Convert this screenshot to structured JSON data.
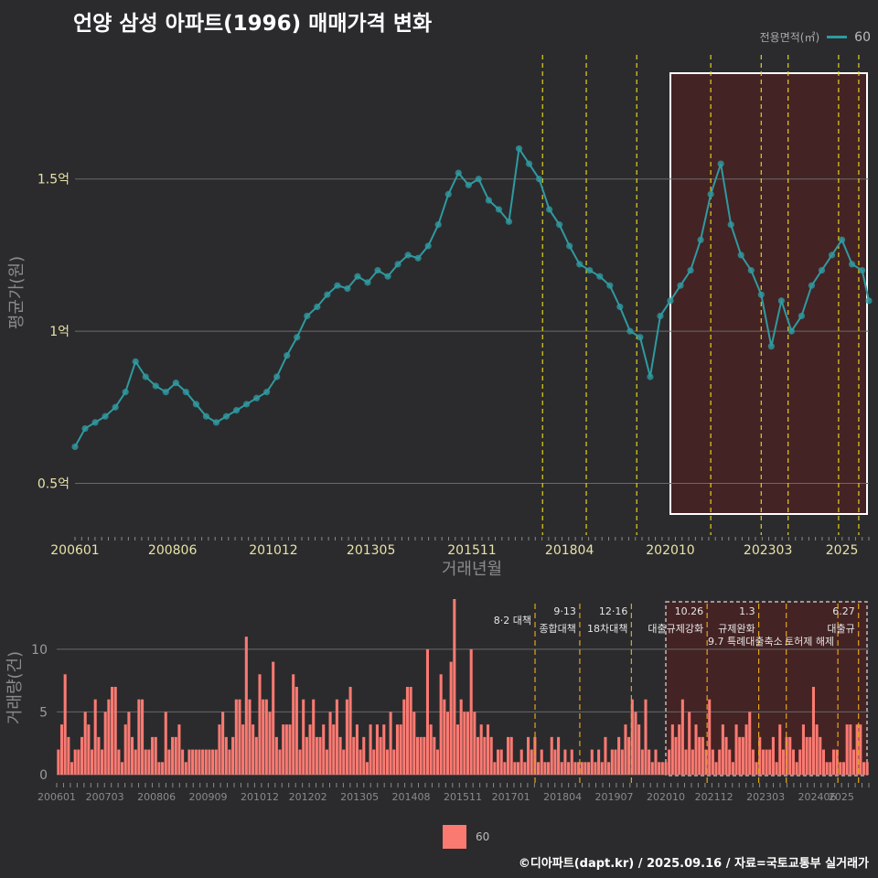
{
  "title": "언양 삼성 아파트(1996) 매매가격 변화",
  "legend": {
    "title": "전용면적(㎡)",
    "entry": "60",
    "line_color": "#2f9aa0",
    "bar_color": "#fa7a72"
  },
  "footer": "©디아파트(dapt.kr) / 2025.09.16 / 자료=국토교통부 실거래가",
  "chart_data": [
    {
      "type": "line",
      "title": "언양 삼성 아파트(1996) 매매가격 변화",
      "xlabel": "거래년월",
      "ylabel": "평균가(원)",
      "ylim": [
        0.33,
        1.92
      ],
      "yticks": [
        {
          "v": 0.5,
          "label": "0.5억"
        },
        {
          "v": 1.0,
          "label": "1억"
        },
        {
          "v": 1.5,
          "label": "1.5억"
        }
      ],
      "xticks": [
        "200601",
        "200806",
        "201012",
        "201305",
        "201511",
        "201804",
        "202010",
        "202303",
        "2025"
      ],
      "x_range": [
        "2006-01",
        "2025-09"
      ],
      "series": [
        {
          "name": "60",
          "x": [
            "2006-01",
            "2006-04",
            "2006-07",
            "2006-10",
            "2007-01",
            "2007-04",
            "2007-07",
            "2007-10",
            "2008-01",
            "2008-04",
            "2008-07",
            "2008-10",
            "2009-01",
            "2009-04",
            "2009-07",
            "2009-10",
            "2010-01",
            "2010-04",
            "2010-07",
            "2010-10",
            "2011-01",
            "2011-04",
            "2011-07",
            "2011-10",
            "2012-01",
            "2012-04",
            "2012-07",
            "2012-10",
            "2013-01",
            "2013-04",
            "2013-07",
            "2013-10",
            "2014-01",
            "2014-04",
            "2014-07",
            "2014-10",
            "2015-01",
            "2015-04",
            "2015-07",
            "2015-10",
            "2016-01",
            "2016-04",
            "2016-07",
            "2016-10",
            "2017-01",
            "2017-04",
            "2017-07",
            "2017-10",
            "2018-01",
            "2018-04",
            "2018-07",
            "2018-10",
            "2019-01",
            "2019-04",
            "2019-07",
            "2019-10",
            "2020-01",
            "2020-04",
            "2020-07",
            "2020-10",
            "2021-01",
            "2021-04",
            "2021-07",
            "2021-10",
            "2022-01",
            "2022-04",
            "2022-07",
            "2022-10",
            "2023-01",
            "2023-04",
            "2023-07",
            "2023-10",
            "2024-01",
            "2024-04",
            "2024-07",
            "2024-10",
            "2025-01",
            "2025-04",
            "2025-07",
            "2025-09"
          ],
          "values": [
            0.62,
            0.68,
            0.7,
            0.72,
            0.75,
            0.8,
            0.9,
            0.85,
            0.82,
            0.8,
            0.83,
            0.8,
            0.76,
            0.72,
            0.7,
            0.72,
            0.74,
            0.76,
            0.78,
            0.8,
            0.85,
            0.92,
            0.98,
            1.05,
            1.08,
            1.12,
            1.15,
            1.14,
            1.18,
            1.16,
            1.2,
            1.18,
            1.22,
            1.25,
            1.24,
            1.28,
            1.35,
            1.45,
            1.52,
            1.48,
            1.5,
            1.43,
            1.4,
            1.36,
            1.6,
            1.55,
            1.5,
            1.4,
            1.35,
            1.28,
            1.22,
            1.2,
            1.18,
            1.15,
            1.08,
            1.0,
            0.98,
            0.85,
            1.05,
            1.1,
            1.15,
            1.2,
            1.3,
            1.45,
            1.55,
            1.35,
            1.25,
            1.2,
            1.12,
            0.95,
            1.1,
            1.0,
            1.05,
            1.15,
            1.2,
            1.25,
            1.3,
            1.22,
            1.2,
            1.1
          ]
        }
      ],
      "highlight_range": [
        "2020-10",
        "2025-09"
      ],
      "event_lines": [
        "2017-08",
        "2018-09",
        "2019-12",
        "2021-10",
        "2023-01",
        "2023-09",
        "2024-12",
        "2025-06"
      ]
    },
    {
      "type": "bar",
      "xlabel": "",
      "ylabel": "거래량(건)",
      "ylim": [
        0,
        14
      ],
      "yticks": [
        0,
        5,
        10
      ],
      "xticks": [
        "200601",
        "200703",
        "200806",
        "200909",
        "201012",
        "201202",
        "201305",
        "201408",
        "201511",
        "201701",
        "201804",
        "201907",
        "202010",
        "202112",
        "202303",
        "202406",
        "2025"
      ],
      "series": [
        {
          "name": "60",
          "values": [
            2,
            4,
            8,
            3,
            1,
            2,
            2,
            3,
            5,
            4,
            2,
            6,
            3,
            2,
            5,
            6,
            7,
            7,
            2,
            1,
            4,
            5,
            3,
            2,
            6,
            6,
            2,
            2,
            3,
            3,
            1,
            1,
            5,
            2,
            3,
            3,
            4,
            2,
            1,
            2,
            2,
            2,
            2,
            2,
            2,
            2,
            2,
            2,
            4,
            5,
            3,
            2,
            3,
            6,
            6,
            4,
            11,
            6,
            4,
            3,
            8,
            6,
            6,
            5,
            9,
            3,
            2,
            4,
            4,
            4,
            8,
            7,
            2,
            6,
            3,
            4,
            6,
            3,
            3,
            4,
            2,
            5,
            4,
            6,
            3,
            2,
            6,
            7,
            3,
            4,
            2,
            3,
            1,
            4,
            2,
            4,
            3,
            4,
            2,
            5,
            2,
            4,
            4,
            6,
            7,
            7,
            5,
            3,
            3,
            3,
            10,
            4,
            3,
            2,
            8,
            6,
            5,
            9,
            14,
            4,
            6,
            5,
            5,
            10,
            5,
            3,
            4,
            3,
            4,
            3,
            1,
            2,
            2,
            1,
            3,
            3,
            1,
            1,
            2,
            1,
            3,
            2,
            3,
            1,
            2,
            1,
            1,
            3,
            2,
            3,
            1,
            2,
            1,
            2,
            1,
            1,
            1,
            1,
            1,
            2,
            1,
            2,
            1,
            3,
            1,
            2,
            2,
            3,
            2,
            4,
            3,
            6,
            5,
            4,
            2,
            6,
            2,
            1,
            2,
            1,
            1,
            1,
            2,
            4,
            3,
            4,
            6,
            2,
            5,
            2,
            4,
            3,
            3,
            2,
            6,
            2,
            1,
            2,
            4,
            3,
            2,
            1,
            4,
            3,
            3,
            4,
            5,
            2,
            1,
            3,
            2,
            2,
            2,
            3,
            1,
            4,
            2,
            3,
            3,
            2,
            1,
            2,
            4,
            3,
            3,
            7,
            4,
            3,
            2,
            1,
            1,
            2,
            2,
            1,
            1,
            4,
            4,
            2,
            4,
            4,
            1,
            1
          ]
        }
      ],
      "highlight_range": [
        "2020-10",
        "2025-09"
      ],
      "annotations": [
        {
          "date": "2017-08",
          "line1": "8·2 대책",
          "line2": ""
        },
        {
          "date": "2018-09",
          "line1": "9·13",
          "line2": "종합대책"
        },
        {
          "date": "2019-12",
          "line1": "12·16",
          "line2": "18차대책"
        },
        {
          "date": "2021-10",
          "line1": "10.26",
          "line2": "대출규제강화"
        },
        {
          "date": "2023-01",
          "line1": "1.3",
          "line2": "규제완화"
        },
        {
          "date": "2023-09",
          "line1": "",
          "line2": "9.7 특례대출축소"
        },
        {
          "date": "2024-12",
          "line1": "",
          "line2": "토허제 해제"
        },
        {
          "date": "2025-06",
          "line1": "6.27",
          "line2": "대출규"
        }
      ]
    }
  ]
}
